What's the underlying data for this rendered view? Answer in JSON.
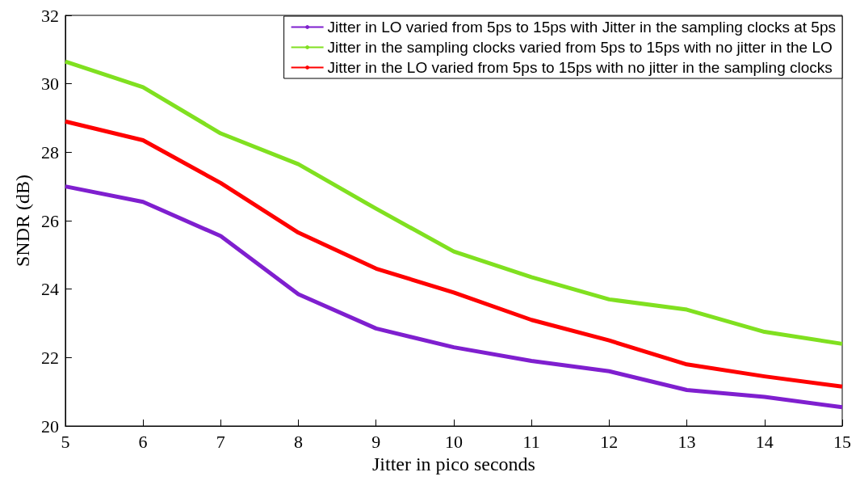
{
  "chart_data": {
    "type": "line",
    "xlabel": "Jitter in pico seconds",
    "ylabel": "SNDR (dB)",
    "x": [
      5,
      6,
      7,
      8,
      9,
      10,
      11,
      12,
      13,
      14,
      15
    ],
    "series": [
      {
        "name": "Jitter in LO varied from 5ps to 15ps with Jitter in the sampling clocks at 5ps",
        "color": "#7f1fcf",
        "values": [
          27.0,
          26.55,
          25.55,
          23.85,
          22.85,
          22.3,
          21.9,
          21.6,
          21.05,
          20.85,
          20.55
        ]
      },
      {
        "name": "Jitter in the sampling clocks varied from 5ps to 15ps with no jitter in the LO",
        "color": "#80e020",
        "values": [
          30.65,
          29.9,
          28.55,
          27.65,
          26.35,
          25.1,
          24.35,
          23.7,
          23.4,
          22.75,
          22.4
        ]
      },
      {
        "name": "Jitter in the LO varied from 5ps to 15ps with no jitter in the sampling clocks",
        "color": "#ff0000",
        "values": [
          28.9,
          28.35,
          27.1,
          25.65,
          24.6,
          23.9,
          23.1,
          22.5,
          21.8,
          21.45,
          21.15
        ]
      }
    ],
    "xlim": [
      5,
      15
    ],
    "xticks": [
      5,
      6,
      7,
      8,
      9,
      10,
      11,
      12,
      13,
      14,
      15
    ],
    "ylim": [
      20,
      32
    ],
    "yticks": [
      20,
      22,
      24,
      26,
      28,
      30,
      32
    ],
    "grid": false,
    "legend": "top right",
    "marker": "none",
    "line_style": "solid"
  }
}
